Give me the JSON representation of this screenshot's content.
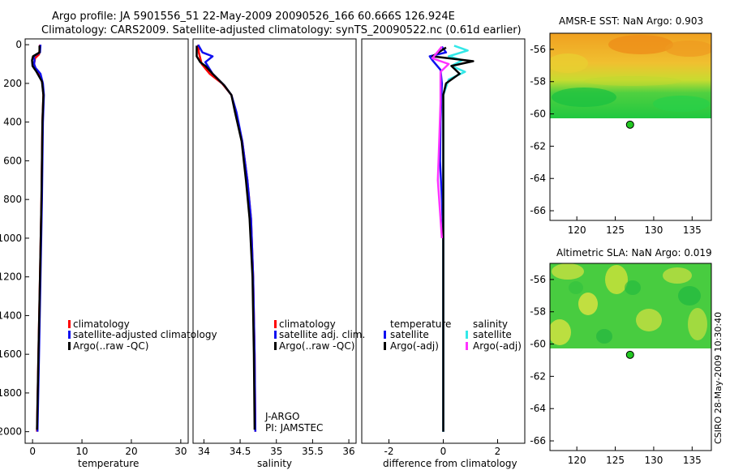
{
  "header": {
    "line1": "Argo profile: JA 5901556_51 22-May-2009 20090526_166 60.666S 126.924E",
    "line2": "Climatology: CARS2009. Satellite-adjusted climatology: synTS_20090522.nc (0.61d earlier)"
  },
  "credit": "CSIRO 28-May-2009 10:30:40",
  "colors": {
    "red": "#ff0000",
    "blue": "#1010f0",
    "black": "#000000",
    "cyan": "#33e8e8",
    "magenta": "#ff33ff"
  },
  "chart_data": [
    {
      "id": "temperature",
      "type": "line",
      "xlabel": "temperature",
      "ylabel": "",
      "xlim": [
        -1.5,
        31.5
      ],
      "ylim": [
        2060,
        -30
      ],
      "xticks": [
        0,
        10,
        20,
        30
      ],
      "yticks": [
        0,
        200,
        400,
        600,
        800,
        1000,
        1200,
        1400,
        1600,
        1800,
        2000
      ],
      "legend": [
        "climatology",
        "satellite-adjusted climatology",
        "Argo(..raw -QC)"
      ],
      "series": [
        {
          "name": "climatology",
          "color": "red",
          "points": [
            [
              1.5,
              0
            ],
            [
              1.4,
              30
            ],
            [
              1.3,
              50
            ],
            [
              0.5,
              70
            ],
            [
              0.3,
              100
            ],
            [
              0.5,
              120
            ],
            [
              1.4,
              150
            ],
            [
              2.0,
              200
            ],
            [
              2.2,
              260
            ],
            [
              2.0,
              400
            ],
            [
              1.8,
              800
            ],
            [
              1.5,
              1200
            ],
            [
              1.2,
              1600
            ],
            [
              0.9,
              2000
            ]
          ]
        },
        {
          "name": "satellite-adjusted climatology",
          "color": "blue",
          "points": [
            [
              1.6,
              0
            ],
            [
              1.5,
              40
            ],
            [
              0.2,
              60
            ],
            [
              0.4,
              80
            ],
            [
              0.3,
              100
            ],
            [
              0.6,
              120
            ],
            [
              1.6,
              150
            ],
            [
              2.1,
              200
            ],
            [
              2.3,
              260
            ],
            [
              2.1,
              400
            ],
            [
              1.9,
              800
            ],
            [
              1.6,
              1200
            ],
            [
              1.3,
              1600
            ],
            [
              1.0,
              2000
            ]
          ]
        },
        {
          "name": "Argo(..raw -QC)",
          "color": "black",
          "points": [
            [
              1.4,
              5
            ],
            [
              1.4,
              40
            ],
            [
              0.1,
              60
            ],
            [
              -0.1,
              80
            ],
            [
              0.0,
              110
            ],
            [
              0.8,
              140
            ],
            [
              1.9,
              190
            ],
            [
              2.2,
              260
            ],
            [
              2.0,
              400
            ],
            [
              1.8,
              800
            ],
            [
              1.5,
              1200
            ],
            [
              1.2,
              1600
            ],
            [
              0.9,
              1990
            ]
          ]
        }
      ]
    },
    {
      "id": "salinity",
      "type": "line",
      "xlabel": "salinity",
      "ylabel": "",
      "xlim": [
        33.85,
        36.1
      ],
      "ylim": [
        2060,
        -30
      ],
      "xticks": [
        34,
        34.5,
        35,
        35.5,
        36
      ],
      "yticks": [],
      "legend": [
        "climatology",
        "satellite adj. clim.",
        "Argo(..raw -QC)"
      ],
      "annotation": [
        "J-ARGO",
        "PI: JAMSTEC"
      ],
      "series": [
        {
          "name": "climatology",
          "color": "red",
          "points": [
            [
              33.92,
              0
            ],
            [
              33.93,
              40
            ],
            [
              33.97,
              100
            ],
            [
              34.08,
              150
            ],
            [
              34.25,
              200
            ],
            [
              34.38,
              260
            ],
            [
              34.44,
              350
            ],
            [
              34.53,
              500
            ],
            [
              34.6,
              700
            ],
            [
              34.65,
              900
            ],
            [
              34.68,
              1200
            ],
            [
              34.7,
              1600
            ],
            [
              34.71,
              2000
            ]
          ]
        },
        {
          "name": "satellite adj. clim.",
          "color": "blue",
          "points": [
            [
              33.92,
              0
            ],
            [
              33.98,
              40
            ],
            [
              34.12,
              60
            ],
            [
              34.02,
              90
            ],
            [
              34.12,
              150
            ],
            [
              34.28,
              210
            ],
            [
              34.38,
              260
            ],
            [
              34.45,
              350
            ],
            [
              34.53,
              500
            ],
            [
              34.6,
              700
            ],
            [
              34.65,
              900
            ],
            [
              34.68,
              1200
            ],
            [
              34.7,
              1600
            ],
            [
              34.71,
              2000
            ]
          ]
        },
        {
          "name": "Argo(..raw -QC)",
          "color": "black",
          "points": [
            [
              33.9,
              5
            ],
            [
              33.9,
              60
            ],
            [
              33.95,
              90
            ],
            [
              34.02,
              110
            ],
            [
              34.12,
              150
            ],
            [
              34.28,
              210
            ],
            [
              34.38,
              260
            ],
            [
              34.43,
              350
            ],
            [
              34.52,
              500
            ],
            [
              34.58,
              700
            ],
            [
              34.63,
              900
            ],
            [
              34.67,
              1200
            ],
            [
              34.69,
              1600
            ],
            [
              34.7,
              1990
            ]
          ]
        }
      ]
    },
    {
      "id": "difference",
      "type": "line",
      "xlabel": "difference from climatology",
      "ylabel": "",
      "xlim": [
        -3.0,
        3.0
      ],
      "ylim": [
        2060,
        -30
      ],
      "xticks": [
        -2,
        0,
        2
      ],
      "yticks": [],
      "legend_titles": [
        "temperature",
        "salinity"
      ],
      "legend": [
        "satellite",
        "Argo(-adj)",
        "satellite",
        "Argo(-adj)"
      ],
      "series": [
        {
          "name": "temperature satellite",
          "color": "blue",
          "points": [
            [
              -0.05,
              10
            ],
            [
              0.1,
              40
            ],
            [
              -0.5,
              60
            ],
            [
              -0.4,
              80
            ],
            [
              -0.1,
              130
            ],
            [
              -0.05,
              200
            ],
            [
              -0.1,
              400
            ],
            [
              -0.12,
              600
            ],
            [
              -0.05,
              800
            ],
            [
              0,
              1000
            ],
            [
              0,
              2000
            ]
          ]
        },
        {
          "name": "salinity satellite",
          "color": "cyan",
          "points": [
            [
              0.4,
              5
            ],
            [
              0.9,
              30
            ],
            [
              0.2,
              60
            ],
            [
              0.7,
              80
            ],
            [
              0.3,
              110
            ],
            [
              0.8,
              140
            ],
            [
              0.2,
              180
            ],
            [
              0,
              260
            ],
            [
              0,
              500
            ],
            [
              0,
              2000
            ]
          ]
        },
        {
          "name": "temperature Argo(-adj)",
          "color": "black",
          "points": [
            [
              0.1,
              15
            ],
            [
              -0.4,
              60
            ],
            [
              1.1,
              85
            ],
            [
              0.3,
              110
            ],
            [
              0.6,
              150
            ],
            [
              0.1,
              200
            ],
            [
              0,
              260
            ],
            [
              0,
              2000
            ]
          ]
        },
        {
          "name": "salinity Argo(-adj)",
          "color": "magenta",
          "points": [
            [
              -0.05,
              10
            ],
            [
              -0.4,
              70
            ],
            [
              0.2,
              100
            ],
            [
              -0.1,
              140
            ],
            [
              -0.1,
              200
            ],
            [
              -0.1,
              300
            ],
            [
              -0.15,
              500
            ],
            [
              -0.2,
              700
            ],
            [
              -0.1,
              900
            ],
            [
              -0.05,
              1000
            ]
          ]
        }
      ]
    },
    {
      "id": "sst",
      "type": "heatmap",
      "title": "AMSR-E SST: NaN Argo: 0.903",
      "xlim": [
        116.5,
        137.5
      ],
      "ylim": [
        -66.6,
        -55.0
      ],
      "xticks": [
        120,
        125,
        130,
        135
      ],
      "yticks": [
        -56,
        -58,
        -60,
        -62,
        -64,
        -66
      ],
      "data_extent_lat": [
        -55.0,
        -60.1
      ],
      "argo_point": {
        "lon": 126.924,
        "lat": -60.666
      }
    },
    {
      "id": "sla",
      "type": "heatmap",
      "title": "Altimetric SLA: NaN Argo: 0.019",
      "xlim": [
        116.5,
        137.5
      ],
      "ylim": [
        -66.6,
        -55.0
      ],
      "xticks": [
        120,
        125,
        130,
        135
      ],
      "yticks": [
        -56,
        -58,
        -60,
        -62,
        -64,
        -66
      ],
      "data_extent_lat": [
        -55.0,
        -60.1
      ],
      "argo_point": {
        "lon": 126.924,
        "lat": -60.666
      }
    }
  ]
}
